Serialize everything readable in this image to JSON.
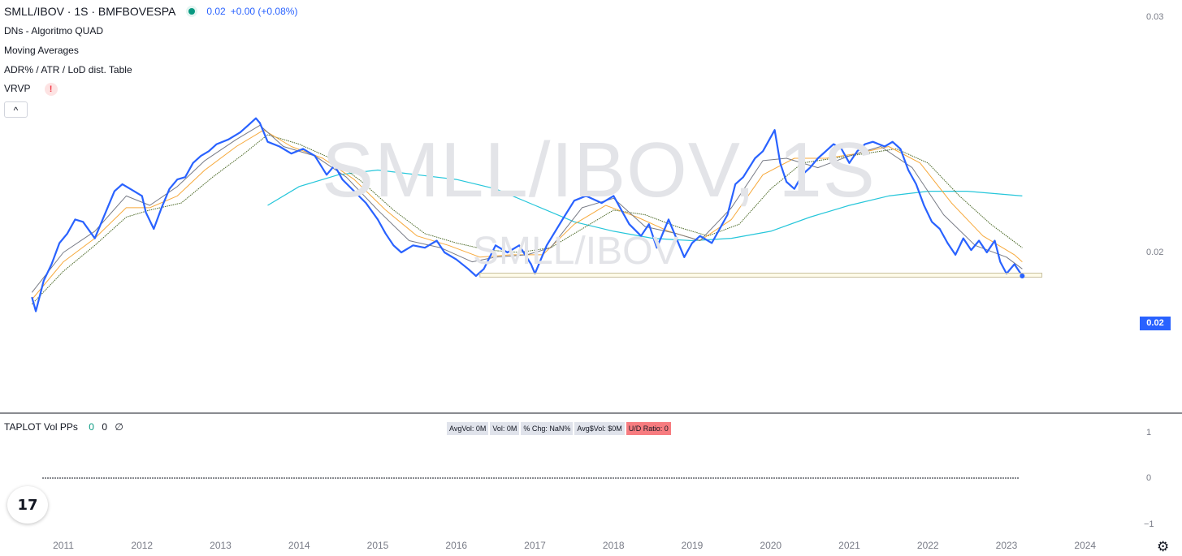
{
  "header": {
    "symbol": "SMLL/IBOV · 1S · BMFBOVESPA",
    "price": "0.02",
    "change": "+0.00 (+0.08%)"
  },
  "indicators": [
    {
      "label": "DNs - Algoritmo QUAD"
    },
    {
      "label": "Moving Averages"
    },
    {
      "label": "ADR% / ATR / LoD dist. Table"
    },
    {
      "label": "VRVP",
      "warning": "!"
    }
  ],
  "collapse_button": "^",
  "watermark": {
    "large": "SMLL/IBOV, 1S",
    "small": "SMLL/IBOV"
  },
  "price_axis": {
    "ticks": [
      "0.03",
      "0.02"
    ],
    "current": "0.02"
  },
  "sub_panel": {
    "name": "TAPLOT Vol PPs",
    "values": [
      "0",
      "0",
      "∅"
    ],
    "stats": [
      {
        "label": "AvgVol: 0M"
      },
      {
        "label": "Vol: 0M"
      },
      {
        "label": "% Chg: NaN%"
      },
      {
        "label": "Avg$Vol: $0M"
      },
      {
        "label": "U/D Ratio: 0",
        "color": "#f77c80"
      }
    ],
    "axis_ticks": [
      "1",
      "0",
      "−1"
    ]
  },
  "time_axis": [
    "2011",
    "2012",
    "2013",
    "2014",
    "2015",
    "2016",
    "2017",
    "2018",
    "2019",
    "2020",
    "2021",
    "2022",
    "2023",
    "2024"
  ],
  "colors": {
    "price_line": "#2962ff",
    "ma_short": "#787b86",
    "ma_mid": "#f7a93b",
    "ma_long": "#4e6b2a",
    "ma_200": "#26c6da",
    "accent": "#2962ff"
  },
  "chart_data": {
    "type": "line",
    "x_start": 2010.6,
    "x_end": 2023.25,
    "y_axis_ticks": [
      "0.03",
      "0.02"
    ],
    "series": [
      {
        "points": [
          [
            2010.6,
            0.0181
          ],
          [
            2010.65,
            0.0175
          ],
          [
            2010.75,
            0.0188
          ],
          [
            2010.85,
            0.0195
          ],
          [
            2010.95,
            0.0204
          ],
          [
            2011.05,
            0.0208
          ],
          [
            2011.15,
            0.0214
          ],
          [
            2011.25,
            0.0213
          ],
          [
            2011.4,
            0.0206
          ],
          [
            2011.55,
            0.0218
          ],
          [
            2011.65,
            0.0226
          ],
          [
            2011.75,
            0.0229
          ],
          [
            2011.9,
            0.0226
          ],
          [
            2012.0,
            0.0224
          ],
          [
            2012.05,
            0.0217
          ],
          [
            2012.15,
            0.021
          ],
          [
            2012.25,
            0.0219
          ],
          [
            2012.35,
            0.0227
          ],
          [
            2012.45,
            0.0231
          ],
          [
            2012.55,
            0.0232
          ],
          [
            2012.65,
            0.0238
          ],
          [
            2012.75,
            0.0241
          ],
          [
            2012.85,
            0.0243
          ],
          [
            2012.95,
            0.0246
          ],
          [
            2013.1,
            0.0248
          ],
          [
            2013.25,
            0.0251
          ],
          [
            2013.35,
            0.0254
          ],
          [
            2013.45,
            0.0257
          ],
          [
            2013.5,
            0.0255
          ],
          [
            2013.6,
            0.0247
          ],
          [
            2013.75,
            0.0245
          ],
          [
            2013.9,
            0.0242
          ],
          [
            2014.05,
            0.0244
          ],
          [
            2014.2,
            0.0241
          ],
          [
            2014.35,
            0.0233
          ],
          [
            2014.45,
            0.0237
          ],
          [
            2014.55,
            0.0231
          ],
          [
            2014.7,
            0.0226
          ],
          [
            2014.85,
            0.0221
          ],
          [
            2015.0,
            0.0214
          ],
          [
            2015.1,
            0.0208
          ],
          [
            2015.2,
            0.0203
          ],
          [
            2015.3,
            0.02
          ],
          [
            2015.45,
            0.0203
          ],
          [
            2015.6,
            0.0202
          ],
          [
            2015.75,
            0.0205
          ],
          [
            2015.85,
            0.02
          ],
          [
            2016.0,
            0.0197
          ],
          [
            2016.15,
            0.0193
          ],
          [
            2016.25,
            0.019
          ],
          [
            2016.35,
            0.0193
          ],
          [
            2016.5,
            0.0203
          ],
          [
            2016.65,
            0.02
          ],
          [
            2016.8,
            0.0203
          ],
          [
            2016.95,
            0.0195
          ],
          [
            2017.0,
            0.0191
          ],
          [
            2017.15,
            0.0203
          ],
          [
            2017.35,
            0.0214
          ],
          [
            2017.5,
            0.0222
          ],
          [
            2017.65,
            0.0224
          ],
          [
            2017.85,
            0.0221
          ],
          [
            2018.0,
            0.0224
          ],
          [
            2018.1,
            0.0218
          ],
          [
            2018.2,
            0.0212
          ],
          [
            2018.35,
            0.0207
          ],
          [
            2018.45,
            0.0212
          ],
          [
            2018.55,
            0.0202
          ],
          [
            2018.7,
            0.0214
          ],
          [
            2018.8,
            0.0206
          ],
          [
            2018.9,
            0.0198
          ],
          [
            2019.0,
            0.0204
          ],
          [
            2019.1,
            0.0207
          ],
          [
            2019.25,
            0.0204
          ],
          [
            2019.35,
            0.021
          ],
          [
            2019.45,
            0.0216
          ],
          [
            2019.55,
            0.0229
          ],
          [
            2019.65,
            0.0232
          ],
          [
            2019.8,
            0.024
          ],
          [
            2019.9,
            0.0243
          ],
          [
            2020.05,
            0.0252
          ],
          [
            2020.12,
            0.0238
          ],
          [
            2020.2,
            0.023
          ],
          [
            2020.3,
            0.0227
          ],
          [
            2020.4,
            0.0233
          ],
          [
            2020.5,
            0.0236
          ],
          [
            2020.6,
            0.024
          ],
          [
            2020.7,
            0.0243
          ],
          [
            2020.8,
            0.0246
          ],
          [
            2020.9,
            0.0244
          ],
          [
            2021.0,
            0.0238
          ],
          [
            2021.1,
            0.0243
          ],
          [
            2021.2,
            0.0246
          ],
          [
            2021.3,
            0.0247
          ],
          [
            2021.45,
            0.0245
          ],
          [
            2021.55,
            0.0247
          ],
          [
            2021.65,
            0.0244
          ],
          [
            2021.75,
            0.0235
          ],
          [
            2021.85,
            0.0229
          ],
          [
            2021.95,
            0.022
          ],
          [
            2022.05,
            0.0213
          ],
          [
            2022.15,
            0.021
          ],
          [
            2022.25,
            0.0204
          ],
          [
            2022.35,
            0.0199
          ],
          [
            2022.45,
            0.0206
          ],
          [
            2022.55,
            0.0201
          ],
          [
            2022.65,
            0.0205
          ],
          [
            2022.75,
            0.02
          ],
          [
            2022.85,
            0.0205
          ],
          [
            2022.92,
            0.0196
          ],
          [
            2023.0,
            0.0191
          ],
          [
            2023.1,
            0.0195
          ],
          [
            2023.2,
            0.019
          ]
        ]
      },
      {
        "points": [
          [
            2010.6,
            0.0183
          ],
          [
            2011.0,
            0.02
          ],
          [
            2011.4,
            0.0209
          ],
          [
            2011.8,
            0.0224
          ],
          [
            2012.1,
            0.022
          ],
          [
            2012.45,
            0.0228
          ],
          [
            2012.8,
            0.0239
          ],
          [
            2013.2,
            0.0248
          ],
          [
            2013.5,
            0.0254
          ],
          [
            2013.8,
            0.0245
          ],
          [
            2014.2,
            0.0241
          ],
          [
            2014.6,
            0.0232
          ],
          [
            2015.0,
            0.0218
          ],
          [
            2015.4,
            0.0205
          ],
          [
            2015.8,
            0.0202
          ],
          [
            2016.2,
            0.0196
          ],
          [
            2016.5,
            0.0198
          ],
          [
            2016.9,
            0.0199
          ],
          [
            2017.2,
            0.0202
          ],
          [
            2017.6,
            0.0219
          ],
          [
            2018.0,
            0.0223
          ],
          [
            2018.4,
            0.0211
          ],
          [
            2018.8,
            0.0208
          ],
          [
            2019.1,
            0.0205
          ],
          [
            2019.5,
            0.0219
          ],
          [
            2019.9,
            0.0239
          ],
          [
            2020.2,
            0.024
          ],
          [
            2020.6,
            0.0236
          ],
          [
            2021.0,
            0.0241
          ],
          [
            2021.4,
            0.0245
          ],
          [
            2021.8,
            0.0236
          ],
          [
            2022.2,
            0.0216
          ],
          [
            2022.6,
            0.0203
          ],
          [
            2023.0,
            0.0198
          ],
          [
            2023.2,
            0.0193
          ]
        ]
      },
      {
        "points": [
          [
            2010.6,
            0.018
          ],
          [
            2011.0,
            0.0196
          ],
          [
            2011.4,
            0.0206
          ],
          [
            2011.8,
            0.0219
          ],
          [
            2012.1,
            0.0219
          ],
          [
            2012.45,
            0.0224
          ],
          [
            2012.8,
            0.0235
          ],
          [
            2013.2,
            0.0245
          ],
          [
            2013.55,
            0.0252
          ],
          [
            2013.9,
            0.0245
          ],
          [
            2014.3,
            0.024
          ],
          [
            2014.7,
            0.0231
          ],
          [
            2015.1,
            0.0218
          ],
          [
            2015.5,
            0.0207
          ],
          [
            2015.9,
            0.0203
          ],
          [
            2016.3,
            0.0198
          ],
          [
            2016.7,
            0.0199
          ],
          [
            2017.1,
            0.0199
          ],
          [
            2017.5,
            0.0212
          ],
          [
            2017.9,
            0.022
          ],
          [
            2018.3,
            0.0215
          ],
          [
            2018.7,
            0.0209
          ],
          [
            2019.1,
            0.0205
          ],
          [
            2019.5,
            0.0214
          ],
          [
            2019.9,
            0.0233
          ],
          [
            2020.3,
            0.024
          ],
          [
            2020.7,
            0.024
          ],
          [
            2021.1,
            0.0242
          ],
          [
            2021.5,
            0.0245
          ],
          [
            2021.9,
            0.0238
          ],
          [
            2022.3,
            0.0221
          ],
          [
            2022.7,
            0.0207
          ],
          [
            2023.1,
            0.0199
          ],
          [
            2023.2,
            0.0196
          ]
        ]
      },
      {
        "points": [
          [
            2010.6,
            0.0178
          ],
          [
            2011.0,
            0.0192
          ],
          [
            2011.4,
            0.0203
          ],
          [
            2011.8,
            0.0215
          ],
          [
            2012.1,
            0.0218
          ],
          [
            2012.5,
            0.0221
          ],
          [
            2012.9,
            0.0232
          ],
          [
            2013.3,
            0.0242
          ],
          [
            2013.6,
            0.025
          ],
          [
            2014.0,
            0.0246
          ],
          [
            2014.4,
            0.024
          ],
          [
            2014.8,
            0.023
          ],
          [
            2015.2,
            0.0218
          ],
          [
            2015.6,
            0.0208
          ],
          [
            2016.0,
            0.0204
          ],
          [
            2016.4,
            0.0201
          ],
          [
            2016.8,
            0.02
          ],
          [
            2017.2,
            0.0202
          ],
          [
            2017.6,
            0.021
          ],
          [
            2018.0,
            0.0218
          ],
          [
            2018.4,
            0.0216
          ],
          [
            2018.8,
            0.0211
          ],
          [
            2019.2,
            0.0207
          ],
          [
            2019.6,
            0.0212
          ],
          [
            2020.0,
            0.0227
          ],
          [
            2020.4,
            0.0238
          ],
          [
            2020.8,
            0.024
          ],
          [
            2021.2,
            0.0242
          ],
          [
            2021.6,
            0.0244
          ],
          [
            2022.0,
            0.0238
          ],
          [
            2022.4,
            0.0224
          ],
          [
            2022.8,
            0.0212
          ],
          [
            2023.2,
            0.0202
          ]
        ]
      },
      {
        "points": [
          [
            2013.6,
            0.022
          ],
          [
            2014.0,
            0.0228
          ],
          [
            2014.5,
            0.0233
          ],
          [
            2015.0,
            0.0235
          ],
          [
            2015.5,
            0.0233
          ],
          [
            2016.0,
            0.0231
          ],
          [
            2016.5,
            0.0227
          ],
          [
            2017.0,
            0.022
          ],
          [
            2017.5,
            0.0213
          ],
          [
            2018.0,
            0.0209
          ],
          [
            2018.5,
            0.0206
          ],
          [
            2019.0,
            0.0205
          ],
          [
            2019.5,
            0.0206
          ],
          [
            2020.0,
            0.0209
          ],
          [
            2020.5,
            0.0215
          ],
          [
            2021.0,
            0.022
          ],
          [
            2021.5,
            0.0224
          ],
          [
            2022.0,
            0.0226
          ],
          [
            2022.5,
            0.0226
          ],
          [
            2023.2,
            0.0224
          ]
        ]
      }
    ],
    "box": {
      "x": [
        2016.3,
        2023.45
      ],
      "y": [
        0.01895,
        0.01912
      ]
    }
  }
}
